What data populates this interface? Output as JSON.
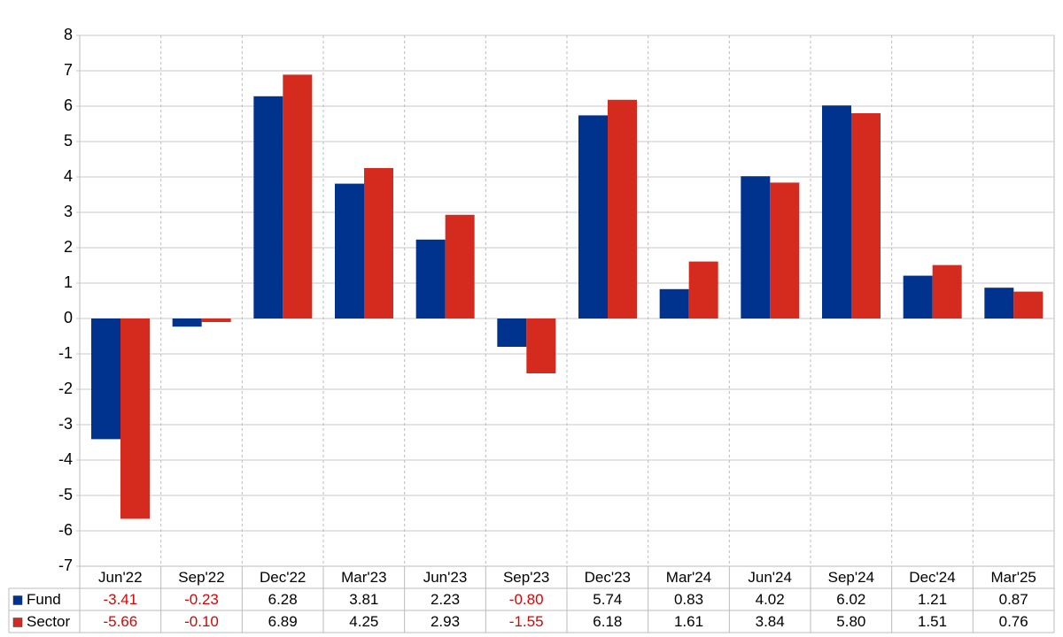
{
  "chart_data": {
    "type": "bar",
    "categories": [
      "Jun'22",
      "Sep'22",
      "Dec'22",
      "Mar'23",
      "Jun'23",
      "Sep'23",
      "Dec'23",
      "Mar'24",
      "Jun'24",
      "Sep'24",
      "Dec'24",
      "Mar'25"
    ],
    "series": [
      {
        "name": "Fund",
        "color": "#00338d",
        "values": [
          -3.41,
          -0.23,
          6.28,
          3.81,
          2.23,
          -0.8,
          5.74,
          0.83,
          4.02,
          6.02,
          1.21,
          0.87
        ],
        "value_labels": [
          "-3.41",
          "-0.23",
          "6.28",
          "3.81",
          "2.23",
          "-0.80",
          "5.74",
          "0.83",
          "4.02",
          "6.02",
          "1.21",
          "0.87"
        ]
      },
      {
        "name": "Sector",
        "color": "#d52b1e",
        "values": [
          -5.66,
          -0.1,
          6.89,
          4.25,
          2.93,
          -1.55,
          6.18,
          1.61,
          3.84,
          5.8,
          1.51,
          0.76
        ],
        "value_labels": [
          "-5.66",
          "-0.10",
          "6.89",
          "4.25",
          "2.93",
          "-1.55",
          "6.18",
          "1.61",
          "3.84",
          "5.80",
          "1.51",
          "0.76"
        ]
      }
    ],
    "ylim": [
      -7,
      8
    ],
    "yticks": [
      -7,
      -6,
      -5,
      -4,
      -3,
      -2,
      -1,
      0,
      1,
      2,
      3,
      4,
      5,
      6,
      7,
      8
    ],
    "grid": true
  }
}
